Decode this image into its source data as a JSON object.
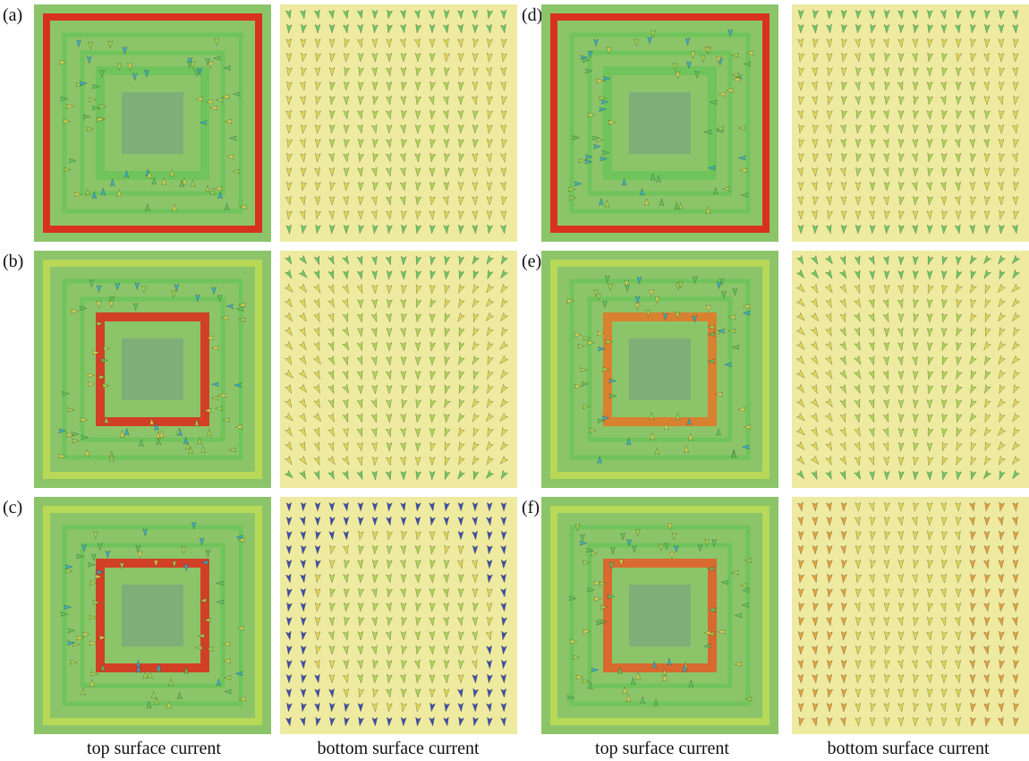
{
  "panels": [
    {
      "label": "(a)"
    },
    {
      "label": "(b)"
    },
    {
      "label": "(c)"
    },
    {
      "label": "(d)"
    },
    {
      "label": "(e)"
    },
    {
      "label": "(f)"
    }
  ],
  "captions": [
    "top surface current",
    "bottom surface current",
    "top surface current",
    "bottom surface current"
  ]
}
